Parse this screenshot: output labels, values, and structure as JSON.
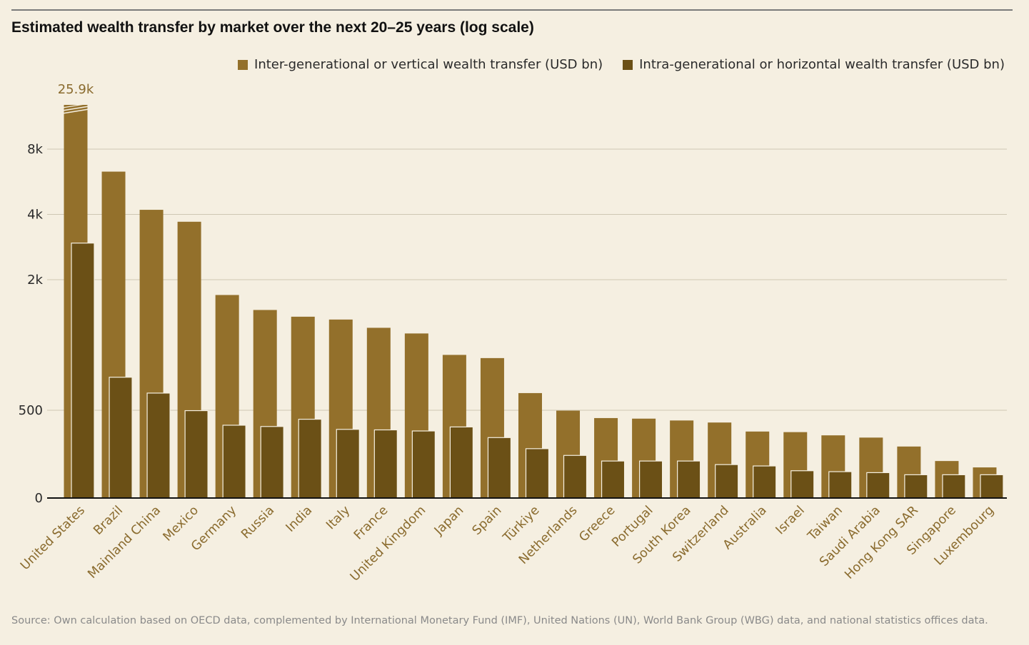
{
  "title": "Estimated wealth transfer by market over the next 20–25 years (log scale)",
  "source": "Source: Own calculation based on OECD data, complemented by International Monetary Fund (IMF), United Nations (UN), World Bank Group (WBG) data, and national statistics offices data.",
  "colors": {
    "inter": "#93702b",
    "intra": "#6b5016",
    "grid": "#cfc7b3",
    "axis": "#111111",
    "background": "#f5efe1"
  },
  "chart_data": {
    "type": "bar",
    "title": "Estimated wealth transfer by market over the next 20–25 years (log scale)",
    "scale": "log",
    "yticks": [
      0,
      500,
      2000,
      4000,
      8000
    ],
    "ytick_labels": [
      "0",
      "500",
      "2k",
      "4k",
      "8k"
    ],
    "grid": true,
    "legend_position": "top-right",
    "categories": [
      "United States",
      "Brazil",
      "Mainland China",
      "Mexico",
      "Germany",
      "Russia",
      "India",
      "Italy",
      "France",
      "United Kingdom",
      "Japan",
      "Spain",
      "Türkiye",
      "Netherlands",
      "Greece",
      "Portugal",
      "South Korea",
      "Switzerland",
      "Australia",
      "Israel",
      "Taiwan",
      "Saudi Arabia",
      "Hong Kong SAR",
      "Singapore",
      "Luxembourg"
    ],
    "series": [
      {
        "name": "Inter-generational or vertical wealth transfer (USD bn)",
        "values": [
          25900,
          6300,
          4200,
          3700,
          1700,
          1450,
          1350,
          1310,
          1200,
          1130,
          900,
          870,
          600,
          490,
          330,
          320,
          290,
          260,
          160,
          155,
          130,
          115,
          70,
          30,
          20
        ]
      },
      {
        "name": "Intra-generational or horizontal wealth transfer (USD bn)",
        "values": [
          2950,
          710,
          600,
          490,
          225,
          210,
          310,
          180,
          175,
          165,
          205,
          115,
          62,
          42,
          30,
          30,
          30,
          24,
          22,
          16,
          15,
          14,
          12,
          12,
          12
        ]
      }
    ],
    "annotations": [
      {
        "category": "United States",
        "series": 0,
        "text": "25.9k",
        "note": "axis break"
      }
    ]
  }
}
